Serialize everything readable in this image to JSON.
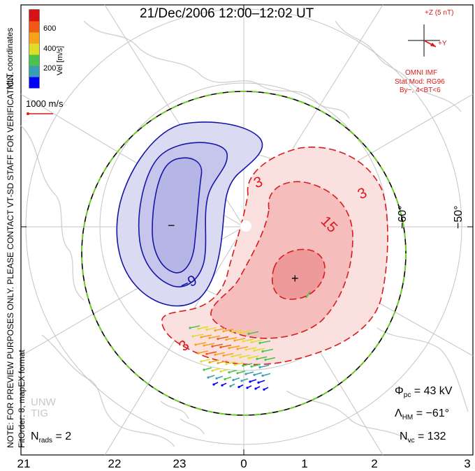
{
  "title": "21/Dec/2006 12:00–12:02 UT",
  "colorbar": {
    "label": "Vel [m/s]",
    "ticks": [
      "600",
      "400",
      "200"
    ],
    "colors": [
      "#0000ff",
      "#3a9fb4",
      "#4cc24c",
      "#dede28",
      "#f7a21b",
      "#f05a16",
      "#d61212"
    ]
  },
  "coords_label": "MLT coordinates",
  "ref_vector": {
    "label": "1000 m/s",
    "color": "#d81b1b"
  },
  "notice_line1": "NOTE: FOR PREVIEW PURPOSES ONLY. PLEASE CONTACT VT-SD STAFF FOR VERIFICATION.",
  "notice_line2": "FitOrder: 8, mapEX format",
  "imf": {
    "z_label": "+Z (5 nT)",
    "y_label": "+Y",
    "source": "OMNI IMF",
    "model_line1": "Stat Mod: RG96",
    "model_line2": "By−, 4<BT<6"
  },
  "lat_labels": [
    "−60°",
    "−50°"
  ],
  "contour_labels": [
    "3",
    "3",
    "15",
    "−9",
    "3"
  ],
  "pole_markers": {
    "minus": "−",
    "plus": "+"
  },
  "stats": {
    "phi_sym": "Φ",
    "phi_sub": "pc",
    "phi_val": " = 43 kV",
    "lam_sym": "Λ",
    "lam_sub": "HM",
    "lam_val": " = −61°",
    "nvc_sym": "N",
    "nvc_sub": "vc",
    "nvc_val": " = 132",
    "nrads_sym": "N",
    "nrads_sub": "rads",
    "nrads_val": " = 2"
  },
  "watermark": [
    "UNW",
    "TIG"
  ],
  "mlt_ticks": [
    "21",
    "22",
    "23",
    "0",
    "1",
    "2",
    "3"
  ],
  "colors": {
    "positive": "#d81b1b",
    "negative": "#1515a8",
    "hmb": "#6ccd29",
    "map": "#c8c8c8"
  }
}
